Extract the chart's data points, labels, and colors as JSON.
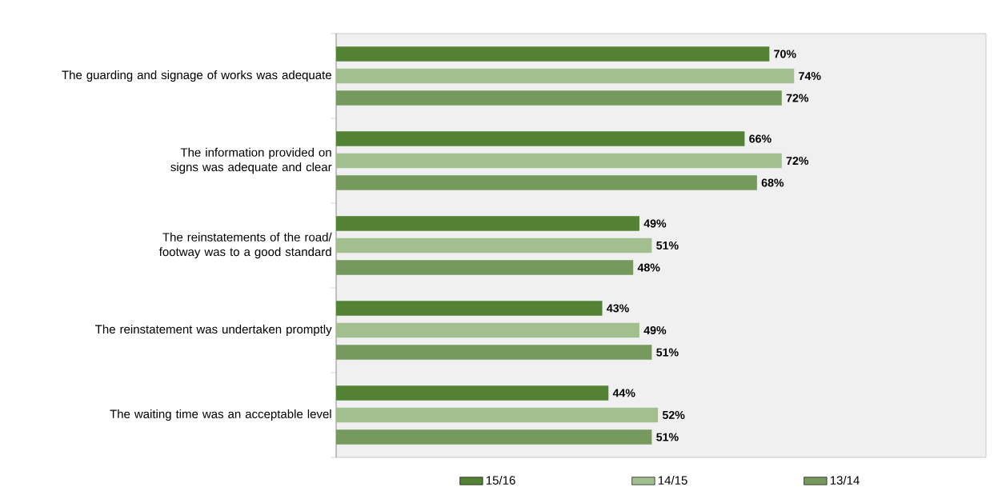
{
  "chart_data": {
    "type": "bar",
    "orientation": "horizontal",
    "categories": [
      "The guarding and signage of works was adequate",
      "The information provided on signs was adequate and clear",
      "The reinstatements of the road/ footway was to a good standard",
      "The reinstatement was undertaken promptly",
      "The waiting time was an acceptable level"
    ],
    "series": [
      {
        "name": "15/16",
        "color": "#548235",
        "values": [
          70,
          66,
          49,
          43,
          44
        ],
        "value_labels": [
          "70%",
          "66%",
          "49%",
          "43%",
          "44%"
        ]
      },
      {
        "name": "14/15",
        "color": "#a3bf90",
        "values": [
          74,
          72,
          51,
          49,
          52
        ],
        "value_labels": [
          "74%",
          "72%",
          "51%",
          "49%",
          "52%"
        ]
      },
      {
        "name": "13/14",
        "color": "#76995e",
        "values": [
          72,
          68,
          48,
          51,
          51
        ],
        "value_labels": [
          "72%",
          "68%",
          "48%",
          "51%",
          "51%"
        ]
      }
    ],
    "xlim": [
      0,
      105
    ],
    "legend": "bottom"
  }
}
